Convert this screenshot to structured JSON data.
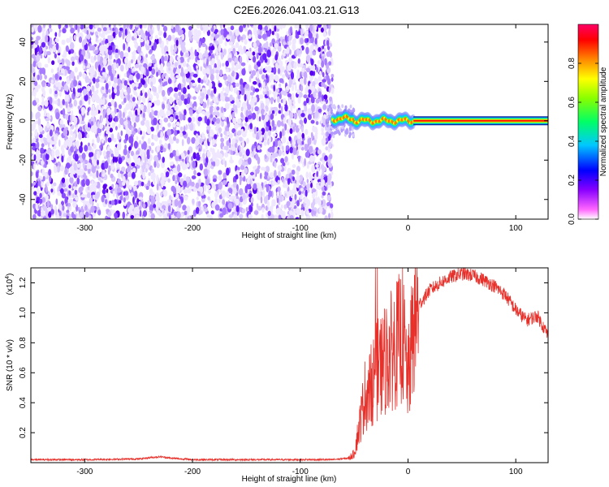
{
  "title": "C2E6.2026.041.03.21.G13",
  "chart_data": [
    {
      "type": "heatmap",
      "xlabel": "Height of straight line (km)",
      "ylabel": "Frequency (Hz)",
      "xlim": [
        -350,
        130
      ],
      "ylim": [
        -50,
        49
      ],
      "xticks": [
        -300,
        -200,
        -100,
        0,
        100
      ],
      "yticks": [
        -40,
        -20,
        0,
        20,
        40
      ],
      "noise_region_x": [
        -350,
        -70
      ],
      "signal_line_freq": 0,
      "signal_start_x": -70,
      "colorbar": {
        "label": "Normalized spectral amplitude",
        "range": [
          0,
          1
        ],
        "ticks": [
          0,
          0.2,
          0.4,
          0.6,
          0.8
        ],
        "colors": [
          "#ffffff",
          "#ff00ff",
          "#7f00ff",
          "#0000ff",
          "#00bfff",
          "#00ff7f",
          "#7fff00",
          "#ffff00",
          "#ff7f00",
          "#ff0000",
          "#ff0055"
        ]
      }
    },
    {
      "type": "line",
      "xlabel": "Height of straight line (km)",
      "ylabel": "SNR (10 * v/v)",
      "yscale_label": "(x10",
      "yscale_exp": "4",
      "xlim": [
        -350,
        130
      ],
      "ylim": [
        0,
        1.3
      ],
      "xticks": [
        -300,
        -200,
        -100,
        0,
        100
      ],
      "yticks": [
        0.2,
        0.4,
        0.6,
        0.8,
        1.0,
        1.2
      ],
      "color": "#e8302a",
      "series": [
        {
          "x": [
            -350,
            -300,
            -250,
            -230,
            -220,
            -200,
            -150,
            -100,
            -70,
            -55,
            -50,
            -45,
            -40,
            -35,
            -30,
            -25,
            -20,
            -15,
            -10,
            -5,
            0,
            5,
            10,
            15,
            20,
            30,
            40,
            50,
            60,
            70,
            80,
            90,
            100,
            110,
            120,
            130
          ],
          "values": [
            0.02,
            0.02,
            0.025,
            0.04,
            0.03,
            0.02,
            0.02,
            0.02,
            0.02,
            0.03,
            0.06,
            0.25,
            0.45,
            0.5,
            0.6,
            0.65,
            0.7,
            0.75,
            0.8,
            0.85,
            0.55,
            0.9,
            1.05,
            1.1,
            1.15,
            1.2,
            1.24,
            1.26,
            1.25,
            1.22,
            1.18,
            1.12,
            1.02,
            0.95,
            0.98,
            0.85
          ]
        }
      ]
    }
  ]
}
